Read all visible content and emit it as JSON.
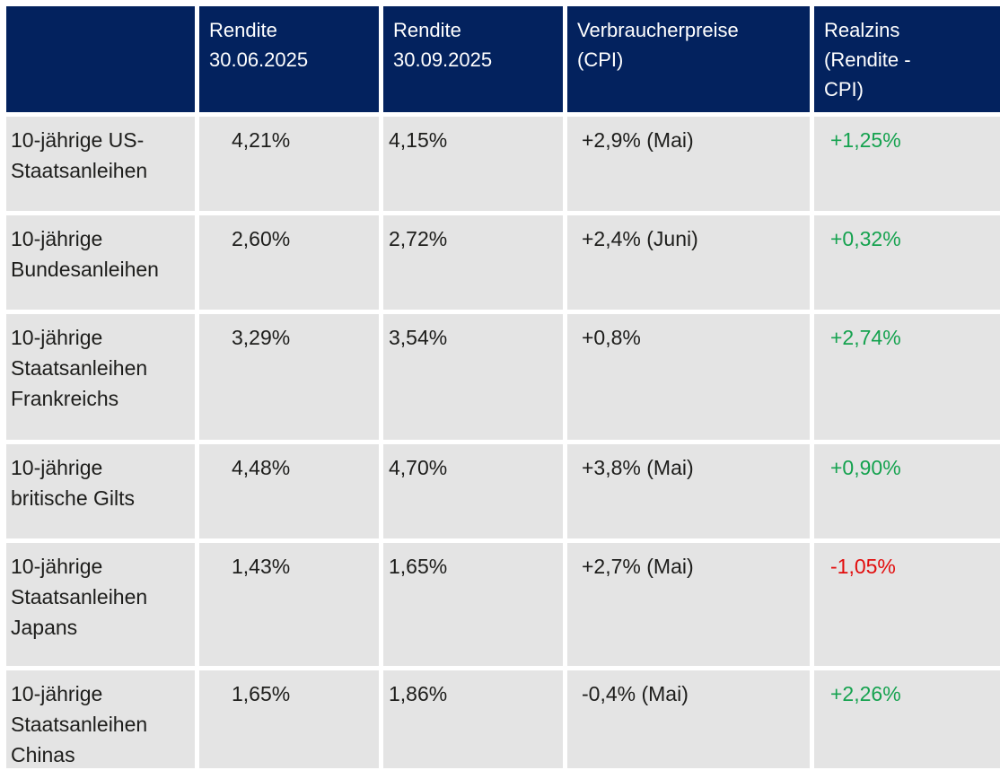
{
  "table": {
    "header": [
      "",
      "Rendite\n30.06.2025",
      "Rendite\n30.09.2025",
      "Verbraucherpreise\n(CPI)",
      "Realzins\n(Rendite -\nCPI)"
    ],
    "rows": [
      {
        "label": "10-jährige US-\nStaatsanleihen",
        "rendite_jun": "4,21%",
        "rendite_sep": "4,15%",
        "cpi": "+2,9% (Mai)",
        "realzins": "+1,25%",
        "realzins_sentiment": "positive"
      },
      {
        "label": "10-jährige\nBundesanleihen",
        "rendite_jun": "2,60%",
        "rendite_sep": "2,72%",
        "cpi": "+2,4% (Juni)",
        "realzins": "+0,32%",
        "realzins_sentiment": "positive"
      },
      {
        "label": "10-jährige\nStaatsanleihen\nFrankreichs",
        "rendite_jun": "3,29%",
        "rendite_sep": "3,54%",
        "cpi": "+0,8%",
        "realzins": "+2,74%",
        "realzins_sentiment": "positive"
      },
      {
        "label": "10-jährige\nbritische Gilts",
        "rendite_jun": "4,48%",
        "rendite_sep": "4,70%",
        "cpi": "+3,8% (Mai)",
        "realzins": "+0,90%",
        "realzins_sentiment": "positive"
      },
      {
        "label": "10-jährige\nStaatsanleihen\nJapans",
        "rendite_jun": "1,43%",
        "rendite_sep": "1,65%",
        "cpi": "+2,7% (Mai)",
        "realzins": "-1,05%",
        "realzins_sentiment": "negative"
      },
      {
        "label": "10-jährige\nStaatsanleihen\nChinas",
        "rendite_jun": "1,65%",
        "rendite_sep": "1,86%",
        "cpi": "-0,4% (Mai)",
        "realzins": "+2,26%",
        "realzins_sentiment": "positive"
      }
    ],
    "colors": {
      "header_bg": "#03225E",
      "header_text": "#FFFFFF",
      "row_bg": "#E4E4E4",
      "text": "#1D1D1B",
      "positive": "#15A24F",
      "negative": "#E20D0D"
    }
  },
  "chart_data": {
    "type": "table",
    "columns": [
      "",
      "Rendite 30.06.2025",
      "Rendite 30.09.2025",
      "Verbraucherpreise (CPI)",
      "Realzins (Rendite - CPI)"
    ],
    "rows": [
      [
        "10-jährige US-Staatsanleihen",
        "4,21%",
        "4,15%",
        "+2,9% (Mai)",
        "+1,25%"
      ],
      [
        "10-jährige Bundesanleihen",
        "2,60%",
        "2,72%",
        "+2,4% (Juni)",
        "+0,32%"
      ],
      [
        "10-jährige Staatsanleihen Frankreichs",
        "3,29%",
        "3,54%",
        "+0,8%",
        "+2,74%"
      ],
      [
        "10-jährige britische Gilts",
        "4,48%",
        "4,70%",
        "+3,8% (Mai)",
        "+0,90%"
      ],
      [
        "10-jährige Staatsanleihen Japans",
        "1,43%",
        "1,65%",
        "+2,7% (Mai)",
        "-1,05%"
      ],
      [
        "10-jährige Staatsanleihen Chinas",
        "1,65%",
        "1,86%",
        "-0,4% (Mai)",
        "+2,26%"
      ]
    ],
    "notes": "Realzins column rendered green when positive, red when negative"
  }
}
